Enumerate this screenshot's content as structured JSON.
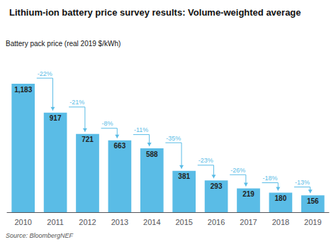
{
  "chart_data": {
    "type": "bar",
    "title": "Lithium-ion battery price survey results: Volume-weighted average",
    "y_label": "Battery pack price (real 2019 $/kWh)",
    "source": "Source: BloombergNEF",
    "categories": [
      "2010",
      "2011",
      "2012",
      "2013",
      "2014",
      "2015",
      "2016",
      "2017",
      "2018",
      "2019"
    ],
    "values": [
      1183,
      917,
      721,
      663,
      588,
      381,
      293,
      219,
      180,
      156
    ],
    "value_labels": [
      "1,183",
      "917",
      "721",
      "663",
      "588",
      "381",
      "293",
      "219",
      "180",
      "156"
    ],
    "annotations": [
      "-22%",
      "-21%",
      "-8%",
      "-11%",
      "-35%",
      "-23%",
      "-26%",
      "-18%",
      "-13%"
    ],
    "color": "#5abce6",
    "ylim": [
      0,
      1380
    ],
    "data_labels": true,
    "tick_labels": "x",
    "grid": false
  }
}
